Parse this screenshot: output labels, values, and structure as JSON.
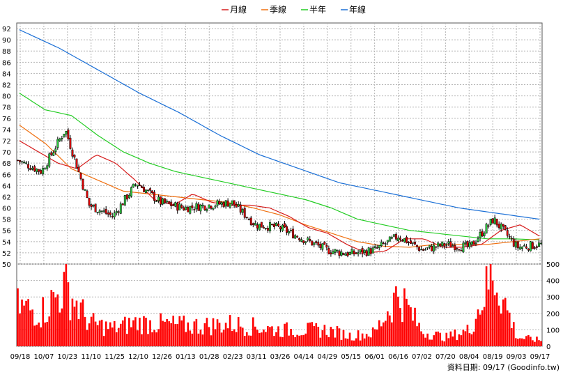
{
  "chart_data": [
    {
      "type": "candlestick",
      "legend": [
        "月線",
        "季線",
        "半年",
        "年線"
      ],
      "legend_placement": "top-center",
      "colors": {
        "月線": "#d61c1c",
        "季線": "#f07010",
        "半年": "#22cc22",
        "年線": "#1a6fd6",
        "up": "#2ecc40",
        "down": "#e00000",
        "grid": "#b4b4b4"
      },
      "grid": true,
      "ylim": [
        50,
        93
      ],
      "y_ticks": [
        50,
        52,
        54,
        56,
        58,
        60,
        62,
        64,
        66,
        68,
        70,
        72,
        74,
        76,
        78,
        80,
        82,
        84,
        86,
        88,
        90,
        92
      ],
      "x_ticks": [
        "09/18",
        "10/07",
        "10/23",
        "11/10",
        "11/25",
        "12/10",
        "12/26",
        "01/13",
        "01/28",
        "02/23",
        "03/11",
        "03/26",
        "04/14",
        "04/29",
        "05/15",
        "06/01",
        "06/16",
        "07/02",
        "07/20",
        "08/04",
        "08/19",
        "09/03",
        "09/17"
      ],
      "key_closes": {
        "09/18": 68.5,
        "10/07": 66.5,
        "10/23": 74.0,
        "11/10": 60.5,
        "11/25": 58.5,
        "12/10": 64.5,
        "12/26": 61.0,
        "01/13": 60.0,
        "01/28": 60.5,
        "02/23": 61.0,
        "03/11": 57.0,
        "03/26": 56.5,
        "04/14": 54.5,
        "04/29": 52.5,
        "05/15": 51.8,
        "06/01": 52.5,
        "06/16": 55.0,
        "07/02": 52.5,
        "07/20": 53.5,
        "08/04": 53.0,
        "08/19": 58.0,
        "09/03": 53.0,
        "09/17": 53.5
      },
      "ma_month_samples": [
        72.0,
        70.0,
        68.0,
        67.0,
        69.5,
        68.0,
        65.0,
        61.5,
        60.5,
        62.5,
        61.0,
        60.5,
        60.5,
        60.0,
        58.5,
        56.5,
        55.5,
        53.5,
        52.0,
        52.3,
        54.5,
        54.5,
        53.0,
        53.0,
        53.5,
        56.0,
        57.0,
        55.0
      ],
      "ma_quarter_samples": [
        74.8,
        71.5,
        67.0,
        65.0,
        63.0,
        62.5,
        62.0,
        61.5,
        61.0,
        60.0,
        58.8,
        57.0,
        55.5,
        54.0,
        53.2,
        53.0,
        53.5,
        53.5,
        53.5,
        54.0,
        54.5
      ],
      "ma_half_samples": [
        80.5,
        77.5,
        76.5,
        73.0,
        70.0,
        68.0,
        66.5,
        65.5,
        64.5,
        63.5,
        62.5,
        61.5,
        60.0,
        58.0,
        57.0,
        56.0,
        55.5,
        55.0,
        54.5,
        54.5,
        54.3
      ],
      "ma_year_samples": [
        91.8,
        88.5,
        84.5,
        80.5,
        77.0,
        73.0,
        69.5,
        67.0,
        64.5,
        63.0,
        61.5,
        60.0,
        59.0,
        58.0
      ]
    },
    {
      "type": "bar",
      "series": [
        "volume"
      ],
      "color": "#ff0000",
      "ylim": [
        0,
        500
      ],
      "y_ticks": [
        0,
        100,
        200,
        300,
        400,
        500
      ],
      "x_ticks": [
        "09/18",
        "10/07",
        "10/23",
        "11/10",
        "11/25",
        "12/10",
        "12/26",
        "01/13",
        "01/28",
        "02/23",
        "03/11",
        "03/26",
        "04/14",
        "04/29",
        "05/15",
        "06/01",
        "06/16",
        "07/02",
        "07/20",
        "08/04",
        "08/19",
        "09/03",
        "09/17"
      ],
      "key_values": {
        "09/18": 270,
        "10/07": 230,
        "10/23": 400,
        "11/10": 160,
        "11/25": 120,
        "12/10": 160,
        "12/26": 150,
        "01/13": 140,
        "01/28": 140,
        "02/23": 150,
        "03/11": 130,
        "03/26": 110,
        "04/14": 110,
        "04/29": 110,
        "05/15": 70,
        "06/01": 90,
        "06/16": 360,
        "07/02": 100,
        "07/20": 60,
        "08/04": 110,
        "08/19": 500,
        "09/03": 60,
        "09/17": 40
      }
    }
  ],
  "footer": {
    "source_text": "資料日期: 09/17  (Goodinfo.tw)"
  }
}
